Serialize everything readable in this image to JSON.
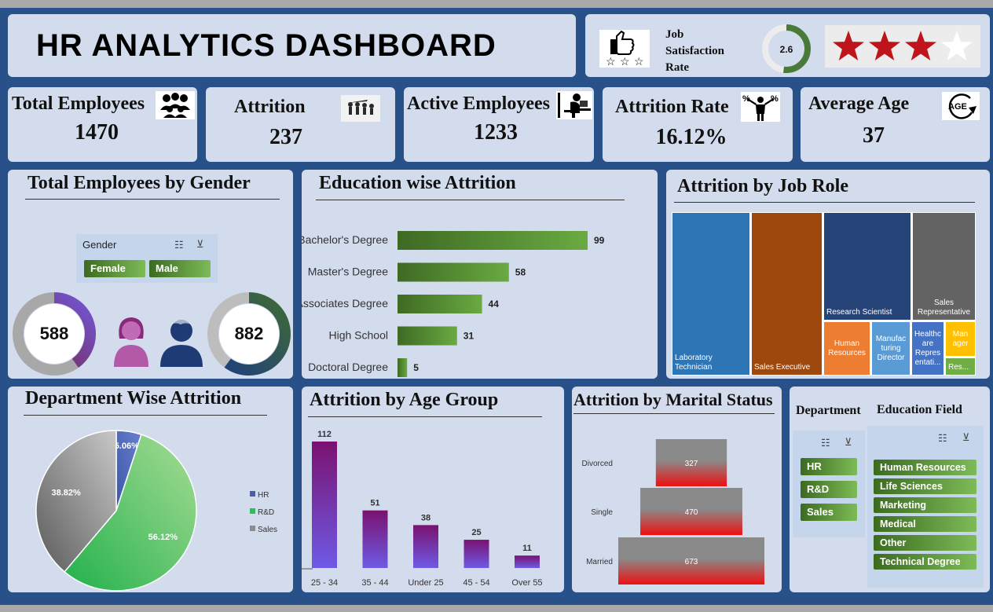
{
  "header": {
    "title": "HR ANALYTICS DASHBOARD"
  },
  "satisfaction": {
    "label_1": "Job",
    "label_2": "Satisfaction",
    "label_3": "Rate",
    "value": "2.6",
    "value_num": 2.6,
    "max": 5,
    "stars_filled": 3,
    "stars_total": 4,
    "star_color": "#c0141c"
  },
  "kpis": [
    {
      "label": "Total Employees",
      "value": "1470",
      "icon": "people-group-icon"
    },
    {
      "label": "Attrition",
      "value": "237",
      "icon": "leaving-people-icon"
    },
    {
      "label": "Active Employees",
      "value": "1233",
      "icon": "desk-worker-icon"
    },
    {
      "label": "Attrition Rate",
      "value": "16.12%",
      "icon": "percent-person-icon"
    },
    {
      "label": "Average Age",
      "value": "37",
      "icon": "age-icon"
    }
  ],
  "gender": {
    "title": "Total Employees by Gender",
    "slicer_title": "Gender",
    "options": [
      "Female",
      "Male"
    ],
    "female_value": "588",
    "male_value": "882"
  },
  "chart_data": [
    {
      "id": "education",
      "type": "bar",
      "orientation": "horizontal",
      "title": "Education wise Attrition",
      "categories": [
        "Bachelor's Degree",
        "Master's Degree",
        "Associates Degree",
        "High School",
        "Doctoral Degree"
      ],
      "values": [
        99,
        58,
        44,
        31,
        5
      ]
    },
    {
      "id": "jobrole",
      "type": "treemap",
      "title": "Attrition by Job Role",
      "categories": [
        "Laboratory Technician",
        "Sales Executive",
        "Research Scientist",
        "Sales Representative",
        "Human Resources",
        "Manufacturing Director",
        "Healthcare Representative",
        "Manager",
        "Research Director"
      ],
      "labels": [
        "Laboratory Technician",
        "Sales Executive",
        "Research Scientist",
        "Sales Representative",
        "Human Resources",
        "Manufac turing Director",
        "Healthc are Repres entati...",
        "Man ager",
        "Res..."
      ],
      "colors": [
        "#2e75b6",
        "#9e480e",
        "#264478",
        "#636363",
        "#ed7d31",
        "#5b9bd5",
        "#4472c4",
        "#ffc000",
        "#70ad47"
      ]
    },
    {
      "id": "department",
      "type": "pie",
      "title": "Department Wise Attrition",
      "categories": [
        "HR",
        "R&D",
        "Sales"
      ],
      "values": [
        5.06,
        56.12,
        38.82
      ],
      "labels": [
        "5.06%",
        "56.12%",
        "38.82%"
      ],
      "colors": [
        "#4a5ea8",
        "#2ebd58",
        "#8c8c8c"
      ],
      "legend_position": "right"
    },
    {
      "id": "age",
      "type": "bar",
      "title": "Attrition by Age Group",
      "categories": [
        "25 - 34",
        "35 - 44",
        "Under 25",
        "45 - 54",
        "Over 55"
      ],
      "values": [
        112,
        51,
        38,
        25,
        11
      ]
    },
    {
      "id": "marital",
      "type": "bar",
      "orientation": "horizontal",
      "title": "Attrition by Marital Status",
      "categories": [
        "Divorced",
        "Single",
        "Married"
      ],
      "values": [
        327,
        470,
        673
      ]
    }
  ],
  "filters": {
    "department_title": "Department",
    "department_options": [
      "HR",
      "R&D",
      "Sales"
    ],
    "education_title": "Education Field",
    "education_options": [
      "Human Resources",
      "Life Sciences",
      "Marketing",
      "Medical",
      "Other",
      "Technical Degree"
    ]
  }
}
